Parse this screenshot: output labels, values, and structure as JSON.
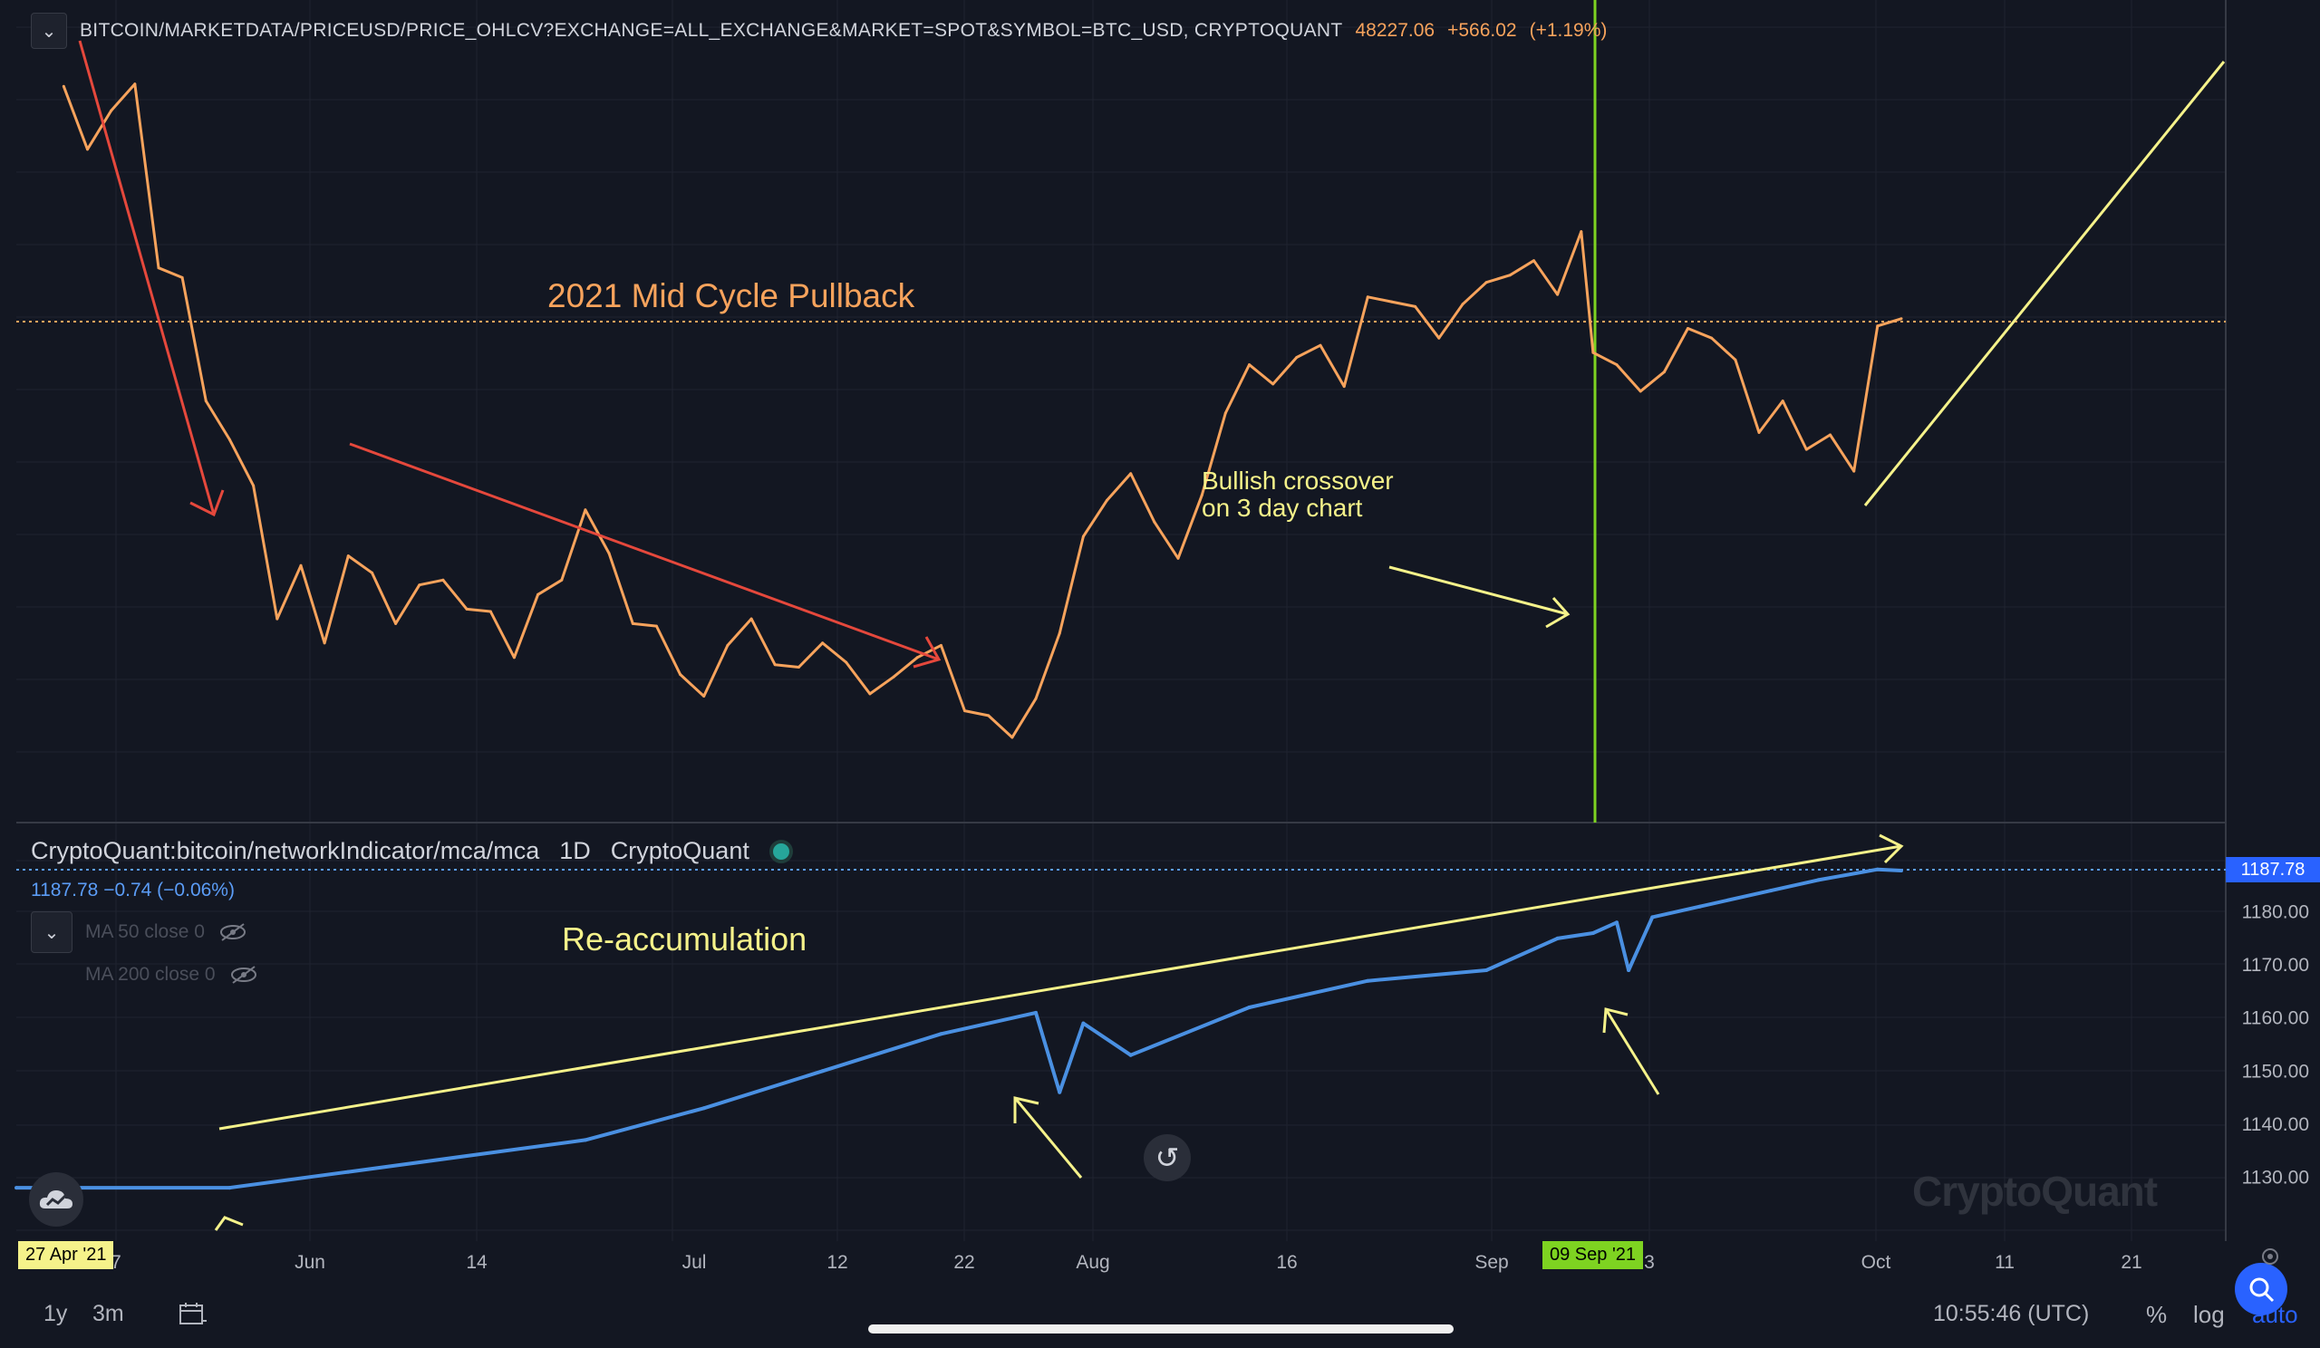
{
  "header": {
    "symbol": "BITCOIN/MARKETDATA/PRICEUSD/PRICE_OHLCV?EXCHANGE=ALL_EXCHANGE&MARKET=SPOT&SYMBOL=BTC_USD, CRYPTOQUANT",
    "last_price": "48227.06",
    "change": "+566.02",
    "change_pct": "(+1.19%)",
    "collapse_icon": "chevron-down-icon"
  },
  "indicator": {
    "name": "CryptoQuant:bitcoin/networkIndicator/mca/mca",
    "interval": "1D",
    "source": "CryptoQuant",
    "value": "1187.78",
    "value_change": "−0.74 (−0.06%)",
    "ma50_label": "MA 50 close 0",
    "ma200_label": "MA 200 close 0"
  },
  "annotations": {
    "title": "2021 Mid Cycle Pullback",
    "bullish_line1": "Bullish crossover",
    "bullish_line2": "on 3 day chart",
    "reaccumulation": "Re-accumulation"
  },
  "time_axis": {
    "labels": [
      "7",
      "Jun",
      "14",
      "Jul",
      "12",
      "22",
      "Aug",
      "16",
      "Sep",
      "3",
      "Oct",
      "11",
      "21"
    ],
    "start_tag": "27 Apr '21",
    "crosshair_tag": "09 Sep '21"
  },
  "lower_price_axis": {
    "labels": [
      "1180.00",
      "1170.00",
      "1160.00",
      "1150.00",
      "1140.00",
      "1130.00"
    ],
    "current_tag": "1187.78"
  },
  "bottom_bar": {
    "tf_1y": "1y",
    "tf_3m": "3m",
    "clock": "10:55:46 (UTC)",
    "percent": "%",
    "log": "log",
    "auto": "auto"
  },
  "watermark": "CryptoQuant",
  "colors": {
    "background": "#131722",
    "price_line": "#f7a35c",
    "mca_line": "#4a90e2",
    "annotation_yellow": "#f5f28a",
    "arrow_red": "#e5483c",
    "crosshair_green": "#7ed321",
    "accent_blue": "#2962ff"
  },
  "chart_data": [
    {
      "type": "line",
      "title": "BITCOIN/MARKETDATA/PRICEUSD/PRICE_OHLCV?EXCHANGE=ALL_EXCHANGE&MARKET=SPOT&SYMBOL=BTC_USD, CRYPTOQUANT",
      "x": [
        "2021-05-01",
        "2021-05-03",
        "2021-05-05",
        "2021-05-07",
        "2021-05-09",
        "2021-05-11",
        "2021-05-13",
        "2021-05-15",
        "2021-05-17",
        "2021-05-19",
        "2021-05-21",
        "2021-05-23",
        "2021-05-25",
        "2021-05-27",
        "2021-05-29",
        "2021-05-31",
        "2021-06-02",
        "2021-06-04",
        "2021-06-06",
        "2021-06-08",
        "2021-06-10",
        "2021-06-12",
        "2021-06-14",
        "2021-06-16",
        "2021-06-18",
        "2021-06-20",
        "2021-06-22",
        "2021-06-24",
        "2021-06-26",
        "2021-06-28",
        "2021-06-30",
        "2021-07-02",
        "2021-07-04",
        "2021-07-06",
        "2021-07-08",
        "2021-07-10",
        "2021-07-12",
        "2021-07-14",
        "2021-07-16",
        "2021-07-18",
        "2021-07-20",
        "2021-07-22",
        "2021-07-24",
        "2021-07-26",
        "2021-07-28",
        "2021-07-30",
        "2021-08-01",
        "2021-08-03",
        "2021-08-05",
        "2021-08-07",
        "2021-08-09",
        "2021-08-11",
        "2021-08-13",
        "2021-08-15",
        "2021-08-17",
        "2021-08-19",
        "2021-08-21",
        "2021-08-23",
        "2021-08-25",
        "2021-08-27",
        "2021-08-29",
        "2021-08-31",
        "2021-09-02",
        "2021-09-04",
        "2021-09-06",
        "2021-09-07",
        "2021-09-09",
        "2021-09-11",
        "2021-09-13",
        "2021-09-15",
        "2021-09-17",
        "2021-09-19",
        "2021-09-21",
        "2021-09-23",
        "2021-09-25",
        "2021-09-27",
        "2021-09-29",
        "2021-10-01",
        "2021-10-03"
      ],
      "series": [
        {
          "values": [
            57800,
            55200,
            56800,
            57900,
            50300,
            49900,
            44800,
            43200,
            41300,
            35800,
            38000,
            34800,
            38400,
            37700,
            35600,
            37200,
            37400,
            36200,
            36100,
            34200,
            36800,
            37400,
            40300,
            38500,
            35600,
            35500,
            33500,
            32600,
            34700,
            35800,
            33900,
            33800,
            34800,
            34000,
            32700,
            33400,
            34200,
            34700,
            32000,
            31800,
            30900,
            32500,
            35200,
            39200,
            40700,
            41800,
            39800,
            38300,
            40900,
            44300,
            46300,
            45500,
            46600,
            47100,
            45400,
            49100,
            48900,
            48700,
            47400,
            48800,
            49700,
            50000,
            50600,
            49200,
            51800,
            46800,
            46300,
            45200,
            46000,
            47800,
            47400,
            46500,
            43500,
            44800,
            42800,
            43400,
            41900,
            47900,
            48200
          ]
        }
      ]
    },
    {
      "type": "line",
      "title": "CryptoQuant:bitcoin/networkIndicator/mca/mca",
      "x": [
        "2021-04-27",
        "2021-05-15",
        "2021-05-25",
        "2021-06-14",
        "2021-06-24",
        "2021-07-04",
        "2021-07-14",
        "2021-07-22",
        "2021-07-24",
        "2021-07-26",
        "2021-07-30",
        "2021-08-09",
        "2021-08-19",
        "2021-08-29",
        "2021-09-04",
        "2021-09-07",
        "2021-09-09",
        "2021-09-10",
        "2021-09-12",
        "2021-09-16",
        "2021-09-22",
        "2021-09-26",
        "2021-10-01",
        "2021-10-03"
      ],
      "series": [
        {
          "values": [
            1128,
            1128,
            1131,
            1137,
            1143,
            1150,
            1157,
            1161,
            1146,
            1159,
            1153,
            1162,
            1167,
            1169,
            1175,
            1176,
            1178,
            1169,
            1179,
            1181,
            1184,
            1186,
            1188,
            1187.78
          ]
        }
      ],
      "ylim": [
        1120,
        1190
      ]
    }
  ]
}
